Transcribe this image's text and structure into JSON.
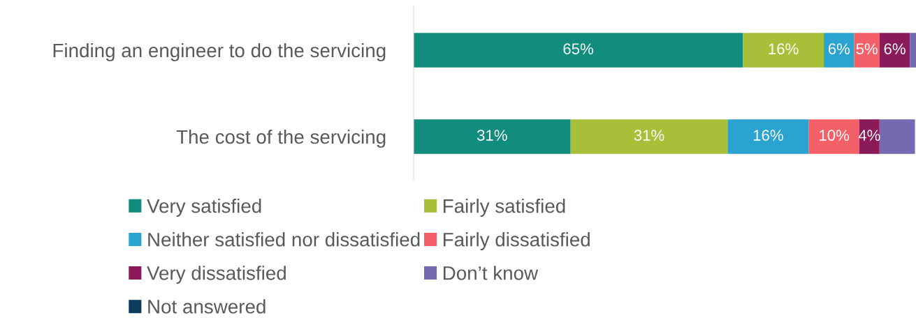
{
  "chart_data": {
    "type": "bar",
    "orientation": "horizontal",
    "stacked": true,
    "categories": [
      "Finding an engineer to do the servicing",
      "The cost of the servicing"
    ],
    "tick_labels": "y",
    "grid": false,
    "legend": "bottom",
    "series": [
      {
        "name": "Very satisfied",
        "color": "#128c7c",
        "values": [
          65,
          31
        ],
        "value_labels": [
          "65%",
          "31%"
        ]
      },
      {
        "name": "Fairly satisfied",
        "color": "#a8bf3a",
        "values": [
          16,
          31
        ],
        "value_labels": [
          "16%",
          "31%"
        ]
      },
      {
        "name": "Neither satisfied nor dissatisfied",
        "color": "#2ba3d0",
        "values": [
          6,
          16
        ],
        "value_labels": [
          "6%",
          "16%"
        ]
      },
      {
        "name": "Fairly dissatisfied",
        "color": "#f46068",
        "values": [
          5,
          10
        ],
        "value_labels": [
          "5%",
          "10%"
        ]
      },
      {
        "name": "Very dissatisfied",
        "color": "#8b1a5a",
        "values": [
          6,
          4
        ],
        "value_labels": [
          "6%",
          "4%"
        ]
      },
      {
        "name": "Don’t know",
        "color": "#7669b0",
        "values": [
          1.2,
          7
        ],
        "value_labels": [
          null,
          null
        ]
      },
      {
        "name": "Not answered",
        "color": "#0b3c5d",
        "values": [
          null,
          null
        ],
        "value_labels": [
          null,
          null
        ]
      }
    ]
  }
}
